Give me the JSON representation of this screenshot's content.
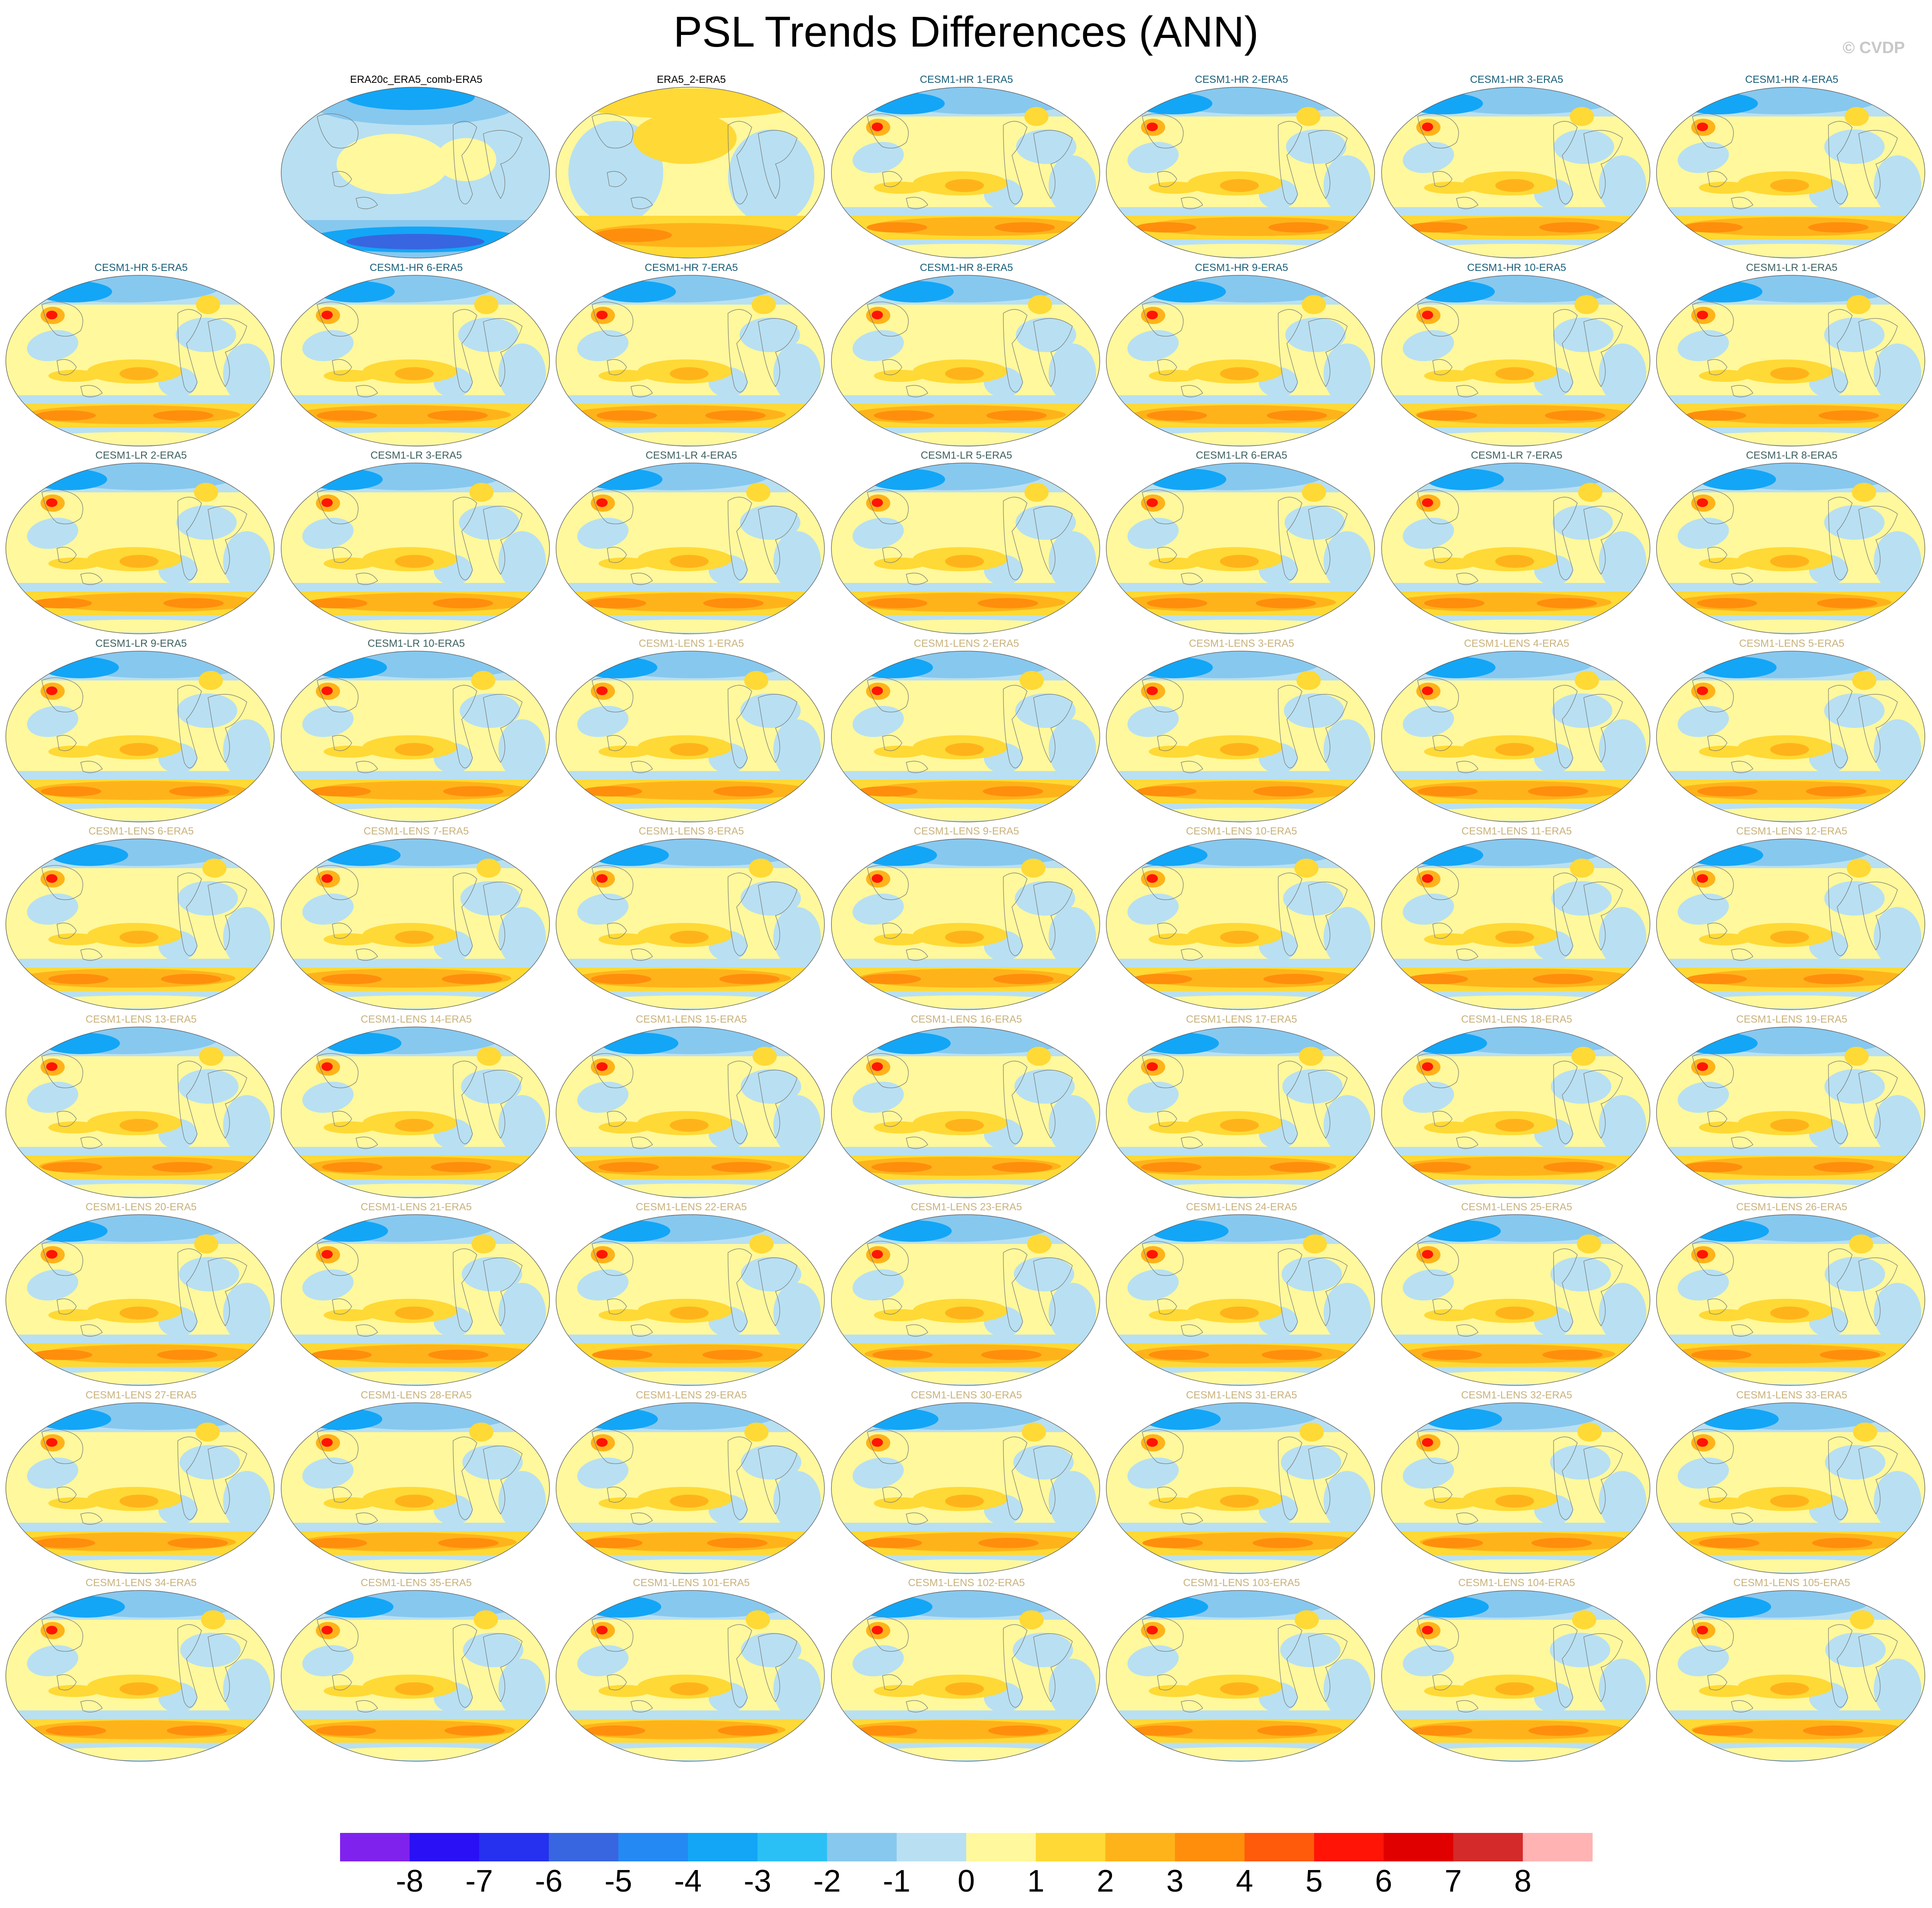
{
  "title": "PSL Trends Differences (ANN)",
  "watermark": "© CVDP",
  "chart_data": {
    "type": "heatmap",
    "title": "PSL Trends Differences (ANN)",
    "projection": "global ellipse map, Pacific-centered",
    "grid_layout": {
      "rows": 9,
      "columns": 7,
      "first_row_offset_columns": 1
    },
    "panels": [
      "ERA20c_ERA5_comb-ERA5",
      "ERA5_2-ERA5",
      "CESM1-HR 1-ERA5",
      "CESM1-HR 2-ERA5",
      "CESM1-HR 3-ERA5",
      "CESM1-HR 4-ERA5",
      "CESM1-HR 5-ERA5",
      "CESM1-HR 6-ERA5",
      "CESM1-HR 7-ERA5",
      "CESM1-HR 8-ERA5",
      "CESM1-HR 9-ERA5",
      "CESM1-HR 10-ERA5",
      "CESM1-LR 1-ERA5",
      "CESM1-LR 2-ERA5",
      "CESM1-LR 3-ERA5",
      "CESM1-LR 4-ERA5",
      "CESM1-LR 5-ERA5",
      "CESM1-LR 6-ERA5",
      "CESM1-LR 7-ERA5",
      "CESM1-LR 8-ERA5",
      "CESM1-LR 9-ERA5",
      "CESM1-LR 10-ERA5",
      "CESM1-LENS 1-ERA5",
      "CESM1-LENS 2-ERA5",
      "CESM1-LENS 3-ERA5",
      "CESM1-LENS 4-ERA5",
      "CESM1-LENS 5-ERA5",
      "CESM1-LENS 6-ERA5",
      "CESM1-LENS 7-ERA5",
      "CESM1-LENS 8-ERA5",
      "CESM1-LENS 9-ERA5",
      "CESM1-LENS 10-ERA5",
      "CESM1-LENS 11-ERA5",
      "CESM1-LENS 12-ERA5",
      "CESM1-LENS 13-ERA5",
      "CESM1-LENS 14-ERA5",
      "CESM1-LENS 15-ERA5",
      "CESM1-LENS 16-ERA5",
      "CESM1-LENS 17-ERA5",
      "CESM1-LENS 18-ERA5",
      "CESM1-LENS 19-ERA5",
      "CESM1-LENS 20-ERA5",
      "CESM1-LENS 21-ERA5",
      "CESM1-LENS 22-ERA5",
      "CESM1-LENS 23-ERA5",
      "CESM1-LENS 24-ERA5",
      "CESM1-LENS 25-ERA5",
      "CESM1-LENS 26-ERA5",
      "CESM1-LENS 27-ERA5",
      "CESM1-LENS 28-ERA5",
      "CESM1-LENS 29-ERA5",
      "CESM1-LENS 30-ERA5",
      "CESM1-LENS 31-ERA5",
      "CESM1-LENS 32-ERA5",
      "CESM1-LENS 33-ERA5",
      "CESM1-LENS 34-ERA5",
      "CESM1-LENS 35-ERA5",
      "CESM1-LENS 101-ERA5",
      "CESM1-LENS 102-ERA5",
      "CESM1-LENS 103-ERA5",
      "CESM1-LENS 104-ERA5",
      "CESM1-LENS 105-ERA5"
    ],
    "label_colors": {
      "observations": "#000000",
      "CESM1-HR": "#1a5f7a",
      "CESM1-LR": "#3f6060",
      "CESM1-LENS": "#c9b27c"
    },
    "colorbar": {
      "ticks": [
        "-8",
        "-7",
        "-6",
        "-5",
        "-4",
        "-3",
        "-2",
        "-1",
        "0",
        "1",
        "2",
        "3",
        "4",
        "5",
        "6",
        "7",
        "8"
      ],
      "colors": [
        "#7f22ee",
        "#2a10f5",
        "#2630ef",
        "#3766e0",
        "#2589f4",
        "#13a6f6",
        "#2bc0f5",
        "#87c8ef",
        "#b8e0f2",
        "#fff89c",
        "#ffd935",
        "#ffb31a",
        "#ff8e0c",
        "#ff5b0a",
        "#ff1405",
        "#e00000",
        "#d42a2a",
        "#ffb3b3"
      ]
    }
  }
}
